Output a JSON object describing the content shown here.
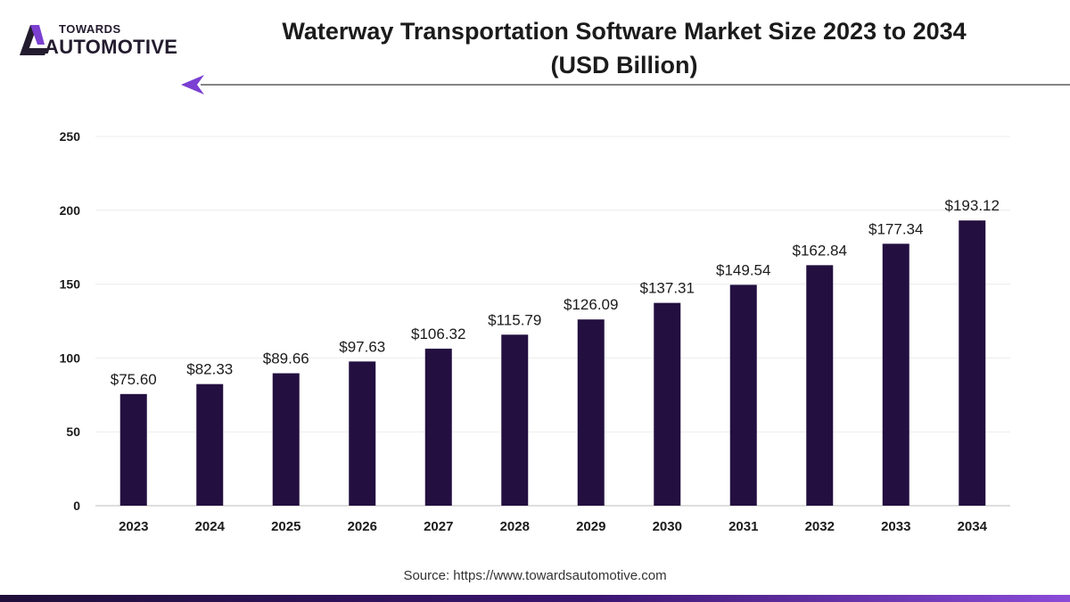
{
  "brand": {
    "top": "TOWARDS",
    "bottom": "AUTOMOTIVE"
  },
  "title_line1": "Waterway Transportation Software Market Size 2023 to 2034",
  "title_line2": "(USD Billion)",
  "source": "Source: https://www.towardsautomotive.com",
  "colors": {
    "bar": "#230f40",
    "accent": "#7b3fd1",
    "text": "#1b1b1b"
  },
  "chart_data": {
    "type": "bar",
    "title": "Waterway Transportation Software Market Size 2023 to 2034 (USD Billion)",
    "xlabel": "",
    "ylabel": "",
    "categories": [
      "2023",
      "2024",
      "2025",
      "2026",
      "2027",
      "2028",
      "2029",
      "2030",
      "2031",
      "2032",
      "2033",
      "2034"
    ],
    "values": [
      75.6,
      82.33,
      89.66,
      97.63,
      106.32,
      115.79,
      126.09,
      137.31,
      149.54,
      162.84,
      177.34,
      193.12
    ],
    "data_labels": [
      "$75.60",
      "$82.33",
      "$89.66",
      "$97.63",
      "$106.32",
      "$115.79",
      "$126.09",
      "$137.31",
      "$149.54",
      "$162.84",
      "$177.34",
      "$193.12"
    ],
    "yticks": [
      0,
      50,
      100,
      150,
      200,
      250
    ],
    "ylim": [
      0,
      250
    ],
    "grid": true,
    "legend": "none"
  }
}
